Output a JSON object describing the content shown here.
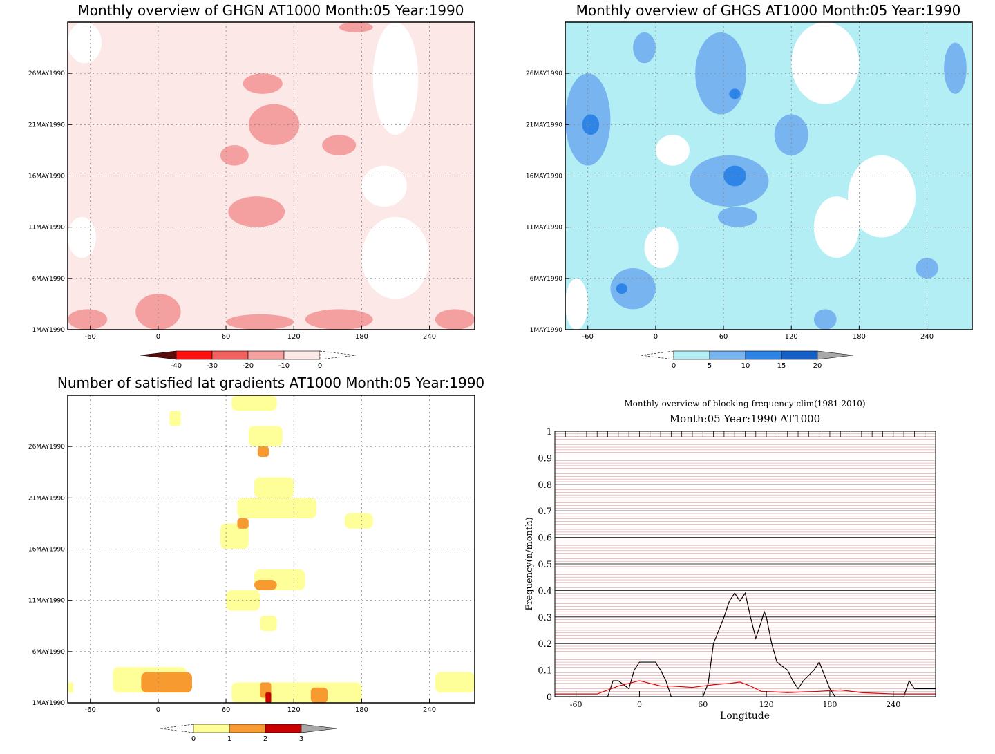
{
  "chart_data": [
    {
      "type": "heatmap",
      "title": "Monthly overview of GHGN AT1000 Month:05 Year:1990",
      "x_ticks": [
        -60,
        0,
        60,
        120,
        180,
        240
      ],
      "y_ticks": [
        "1MAY1990",
        "6MAY1990",
        "11MAY1990",
        "16MAY1990",
        "21MAY1990",
        "26MAY1990"
      ],
      "xlim": [
        -80,
        280
      ],
      "ylim": [
        1,
        31
      ],
      "colorbar": {
        "ticks": [
          "-40",
          "-30",
          "-20",
          "-10",
          "0"
        ],
        "colors": [
          "#5c0a0a",
          "#ff1010",
          "#f26060",
          "#f4a0a0",
          "#fde8e8"
        ]
      },
      "fill_levels": [
        "#fde8e8",
        "#f4a0a0"
      ],
      "regions": [
        {
          "level": 1,
          "lon": [
            -80,
            -45
          ],
          "day": [
            1,
            3
          ]
        },
        {
          "level": 1,
          "lon": [
            -20,
            20
          ],
          "day": [
            1,
            4.5
          ]
        },
        {
          "level": 1,
          "lon": [
            60,
            120
          ],
          "day": [
            1,
            2.5
          ]
        },
        {
          "level": 1,
          "lon": [
            130,
            190
          ],
          "day": [
            1,
            3
          ]
        },
        {
          "level": 1,
          "lon": [
            245,
            280
          ],
          "day": [
            1,
            3
          ]
        },
        {
          "level": 1,
          "lon": [
            62,
            112
          ],
          "day": [
            11,
            14
          ]
        },
        {
          "level": 1,
          "lon": [
            80,
            125
          ],
          "day": [
            19,
            23
          ]
        },
        {
          "level": 1,
          "lon": [
            55,
            80
          ],
          "day": [
            17,
            19
          ]
        },
        {
          "level": 1,
          "lon": [
            145,
            175
          ],
          "day": [
            18,
            20
          ]
        },
        {
          "level": 1,
          "lon": [
            75,
            110
          ],
          "day": [
            24,
            26
          ]
        },
        {
          "level": 1,
          "lon": [
            160,
            190
          ],
          "day": [
            30,
            31
          ]
        }
      ]
    },
    {
      "type": "heatmap",
      "title": "Monthly overview of GHGS AT1000 Month:05 Year:1990",
      "x_ticks": [
        -60,
        0,
        60,
        120,
        180,
        240
      ],
      "y_ticks": [
        "1MAY1990",
        "6MAY1990",
        "11MAY1990",
        "16MAY1990",
        "21MAY1990",
        "26MAY1990"
      ],
      "xlim": [
        -80,
        280
      ],
      "ylim": [
        1,
        31
      ],
      "colorbar": {
        "ticks": [
          "0",
          "5",
          "10",
          "15",
          "20"
        ],
        "colors": [
          "#b4eef5",
          "#78b4f0",
          "#2f84e8",
          "#1460c8",
          "#a8a8a8"
        ]
      },
      "fill_levels": [
        "#b4eef5",
        "#78b4f0",
        "#2f84e8"
      ],
      "regions": [
        {
          "level": 1,
          "lon": [
            -80,
            -40
          ],
          "day": [
            17,
            26
          ]
        },
        {
          "level": 1,
          "lon": [
            -20,
            0
          ],
          "day": [
            27,
            30
          ]
        },
        {
          "level": 1,
          "lon": [
            35,
            80
          ],
          "day": [
            22,
            30
          ]
        },
        {
          "level": 1,
          "lon": [
            30,
            100
          ],
          "day": [
            13,
            18
          ]
        },
        {
          "level": 1,
          "lon": [
            55,
            90
          ],
          "day": [
            11,
            13
          ]
        },
        {
          "level": 1,
          "lon": [
            105,
            135
          ],
          "day": [
            18,
            22
          ]
        },
        {
          "level": 1,
          "lon": [
            -40,
            0
          ],
          "day": [
            3,
            7
          ]
        },
        {
          "level": 1,
          "lon": [
            140,
            160
          ],
          "day": [
            1,
            3
          ]
        },
        {
          "level": 1,
          "lon": [
            255,
            275
          ],
          "day": [
            24,
            29
          ]
        },
        {
          "level": 1,
          "lon": [
            230,
            250
          ],
          "day": [
            6,
            8
          ]
        },
        {
          "level": 2,
          "lon": [
            -65,
            -50
          ],
          "day": [
            20,
            22
          ]
        },
        {
          "level": 2,
          "lon": [
            60,
            80
          ],
          "day": [
            15,
            17
          ]
        },
        {
          "level": 2,
          "lon": [
            -35,
            -25
          ],
          "day": [
            4.5,
            5.5
          ]
        },
        {
          "level": 2,
          "lon": [
            65,
            75
          ],
          "day": [
            23.5,
            24.5
          ]
        }
      ]
    },
    {
      "type": "heatmap",
      "title": "Number of satisfied lat gradients AT1000 Month:05 Year:1990",
      "x_ticks": [
        -60,
        0,
        60,
        120,
        180,
        240
      ],
      "y_ticks": [
        "1MAY1990",
        "6MAY1990",
        "11MAY1990",
        "16MAY1990",
        "21MAY1990",
        "26MAY1990"
      ],
      "xlim": [
        -80,
        280
      ],
      "ylim": [
        1,
        31
      ],
      "colorbar": {
        "ticks": [
          "0",
          "1",
          "2",
          "3"
        ],
        "colors": [
          "#ffff99",
          "#f79a30",
          "#c80000",
          "#a8a8a8"
        ]
      },
      "fill_levels": [
        "#ffff99",
        "#f79a30",
        "#c80000"
      ],
      "regions": [
        {
          "level": 1,
          "lon": [
            -40,
            25
          ],
          "day": [
            2,
            4.5
          ]
        },
        {
          "level": 1,
          "lon": [
            -80,
            -75
          ],
          "day": [
            2,
            3
          ]
        },
        {
          "level": 1,
          "lon": [
            65,
            180
          ],
          "day": [
            1,
            3
          ]
        },
        {
          "level": 1,
          "lon": [
            245,
            280
          ],
          "day": [
            2,
            4
          ]
        },
        {
          "level": 1,
          "lon": [
            90,
            105
          ],
          "day": [
            8,
            9.5
          ]
        },
        {
          "level": 1,
          "lon": [
            60,
            90
          ],
          "day": [
            10,
            12
          ]
        },
        {
          "level": 1,
          "lon": [
            85,
            130
          ],
          "day": [
            12,
            14
          ]
        },
        {
          "level": 1,
          "lon": [
            55,
            80
          ],
          "day": [
            16,
            18.5
          ]
        },
        {
          "level": 1,
          "lon": [
            70,
            140
          ],
          "day": [
            19,
            21
          ]
        },
        {
          "level": 1,
          "lon": [
            85,
            120
          ],
          "day": [
            21,
            23
          ]
        },
        {
          "level": 1,
          "lon": [
            165,
            190
          ],
          "day": [
            18,
            19.5
          ]
        },
        {
          "level": 1,
          "lon": [
            80,
            110
          ],
          "day": [
            26,
            28
          ]
        },
        {
          "level": 1,
          "lon": [
            65,
            105
          ],
          "day": [
            29.5,
            31
          ]
        },
        {
          "level": 1,
          "lon": [
            10,
            20
          ],
          "day": [
            28,
            29.5
          ]
        },
        {
          "level": 2,
          "lon": [
            -15,
            30
          ],
          "day": [
            2,
            4
          ]
        },
        {
          "level": 2,
          "lon": [
            90,
            100
          ],
          "day": [
            1.5,
            3
          ]
        },
        {
          "level": 2,
          "lon": [
            135,
            150
          ],
          "day": [
            1,
            2.5
          ]
        },
        {
          "level": 2,
          "lon": [
            85,
            105
          ],
          "day": [
            12,
            13
          ]
        },
        {
          "level": 2,
          "lon": [
            70,
            80
          ],
          "day": [
            18,
            19
          ]
        },
        {
          "level": 2,
          "lon": [
            88,
            98
          ],
          "day": [
            25,
            26
          ]
        },
        {
          "level": 3,
          "lon": [
            95,
            100
          ],
          "day": [
            1,
            2
          ]
        }
      ]
    },
    {
      "type": "line",
      "title": "Monthly overview of blocking frequency clim(1981-2010)",
      "subtitle": "Month:05 Year:1990  AT1000",
      "xlabel": "Longitude",
      "ylabel": "Frequency(n/month)",
      "xlim": [
        -80,
        280
      ],
      "ylim": [
        0,
        1
      ],
      "x_ticks": [
        -60,
        0,
        60,
        120,
        180,
        240
      ],
      "y_ticks": [
        0,
        0.1,
        0.2,
        0.3,
        0.4,
        0.5,
        0.6,
        0.7,
        0.8,
        0.9,
        1
      ],
      "grid": true,
      "series": [
        {
          "color": "#000000",
          "x": [
            -80,
            -30,
            -25,
            -20,
            -10,
            -5,
            0,
            15,
            20,
            25,
            30,
            60,
            65,
            70,
            75,
            80,
            85,
            90,
            95,
            100,
            105,
            110,
            115,
            118,
            120,
            125,
            130,
            140,
            145,
            150,
            155,
            165,
            170,
            175,
            180,
            185,
            190,
            250,
            255,
            260,
            265,
            280
          ],
          "y": [
            0,
            0,
            0.06,
            0.06,
            0.03,
            0.1,
            0.13,
            0.13,
            0.1,
            0.06,
            0,
            0,
            0.05,
            0.2,
            0.25,
            0.3,
            0.36,
            0.39,
            0.36,
            0.39,
            0.3,
            0.22,
            0.28,
            0.32,
            0.3,
            0.2,
            0.13,
            0.1,
            0.06,
            0.03,
            0.06,
            0.1,
            0.13,
            0.08,
            0.03,
            0,
            0,
            0,
            0.06,
            0.03,
            0.03,
            0.03
          ]
        },
        {
          "color": "#e00000",
          "x": [
            -80,
            -40,
            -20,
            -10,
            0,
            10,
            20,
            30,
            50,
            70,
            85,
            95,
            105,
            115,
            140,
            170,
            190,
            210,
            240,
            260,
            280
          ],
          "y": [
            0.01,
            0.01,
            0.04,
            0.05,
            0.06,
            0.05,
            0.04,
            0.04,
            0.035,
            0.045,
            0.05,
            0.055,
            0.04,
            0.02,
            0.015,
            0.02,
            0.025,
            0.015,
            0.01,
            0.01,
            0.01
          ]
        }
      ]
    }
  ]
}
